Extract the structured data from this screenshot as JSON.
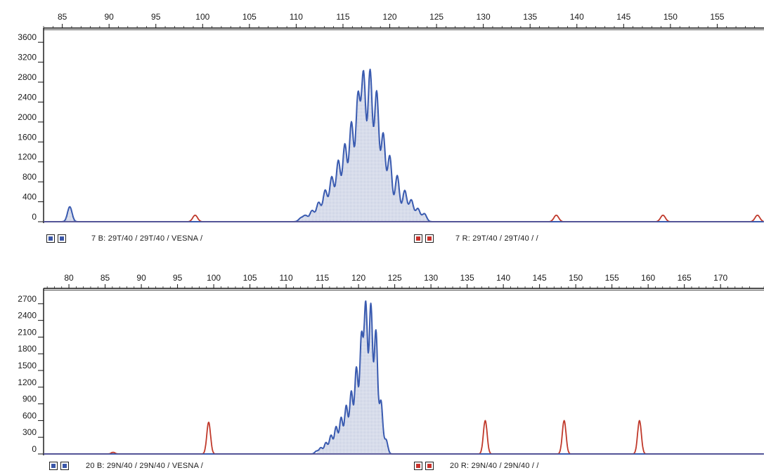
{
  "colors": {
    "blue_trace": "#3a5bb0",
    "blue_fill": "#aab5d3",
    "red_trace": "#c0392b",
    "axis": "#111111"
  },
  "panels": [
    {
      "footer_blue": "7 B: 29T/40 / 29T/40 / VESNA /",
      "footer_red": "7 R: 29T/40 / 29T/40 /  /"
    },
    {
      "footer_blue": "20 B: 29N/40 / 29N/40 / VESNA /",
      "footer_red": "20 R: 29N/40 / 29N/40 /  /"
    }
  ],
  "chart_data": [
    {
      "type": "line",
      "title": "",
      "xlabel": "",
      "ylabel": "",
      "x_ticks": [
        85,
        90,
        95,
        100,
        105,
        110,
        115,
        120,
        125,
        130,
        135,
        140,
        145,
        150,
        155
      ],
      "y_ticks": [
        0,
        400,
        800,
        1200,
        1600,
        2000,
        2400,
        2800,
        3200,
        3600
      ],
      "xlim": [
        83,
        160
      ],
      "ylim": [
        0,
        3800
      ],
      "grid": false,
      "series": [
        {
          "color": "blue",
          "filled": true,
          "peaks": [
            {
              "x": 85.8,
              "y": 300
            },
            {
              "x": 110.5,
              "y": 70
            },
            {
              "x": 111.0,
              "y": 120
            },
            {
              "x": 111.7,
              "y": 220
            },
            {
              "x": 112.4,
              "y": 380
            },
            {
              "x": 113.1,
              "y": 620
            },
            {
              "x": 113.8,
              "y": 880
            },
            {
              "x": 114.5,
              "y": 1200
            },
            {
              "x": 115.2,
              "y": 1520
            },
            {
              "x": 115.9,
              "y": 1950
            },
            {
              "x": 116.6,
              "y": 2450
            },
            {
              "x": 117.2,
              "y": 2880
            },
            {
              "x": 117.9,
              "y": 2980
            },
            {
              "x": 118.6,
              "y": 2560
            },
            {
              "x": 119.3,
              "y": 1730
            },
            {
              "x": 120.0,
              "y": 1300
            },
            {
              "x": 120.8,
              "y": 920
            },
            {
              "x": 121.6,
              "y": 620
            },
            {
              "x": 122.3,
              "y": 430
            },
            {
              "x": 123.0,
              "y": 260
            },
            {
              "x": 123.7,
              "y": 160
            }
          ]
        },
        {
          "color": "red",
          "filled": false,
          "peaks": [
            {
              "x": 99.2,
              "y": 130
            },
            {
              "x": 137.8,
              "y": 130
            },
            {
              "x": 149.2,
              "y": 130
            },
            {
              "x": 159.3,
              "y": 130
            }
          ]
        }
      ]
    },
    {
      "type": "line",
      "title": "",
      "xlabel": "",
      "ylabel": "",
      "x_ticks": [
        80,
        85,
        90,
        95,
        100,
        105,
        110,
        115,
        120,
        125,
        130,
        135,
        140,
        145,
        150,
        155,
        160,
        165,
        170
      ],
      "y_ticks": [
        0,
        300,
        600,
        900,
        1200,
        1500,
        1800,
        2100,
        2400,
        2700
      ],
      "xlim": [
        76.5,
        176
      ],
      "ylim": [
        0,
        2900
      ],
      "grid": false,
      "series": [
        {
          "color": "blue",
          "filled": true,
          "peaks": [
            {
              "x": 114.2,
              "y": 50
            },
            {
              "x": 114.8,
              "y": 110
            },
            {
              "x": 115.5,
              "y": 200
            },
            {
              "x": 116.2,
              "y": 330
            },
            {
              "x": 116.9,
              "y": 480
            },
            {
              "x": 117.6,
              "y": 640
            },
            {
              "x": 118.3,
              "y": 850
            },
            {
              "x": 119.0,
              "y": 1100
            },
            {
              "x": 119.7,
              "y": 1520
            },
            {
              "x": 120.4,
              "y": 2050
            },
            {
              "x": 121.0,
              "y": 2620
            },
            {
              "x": 121.7,
              "y": 2640
            },
            {
              "x": 122.4,
              "y": 2180
            },
            {
              "x": 123.1,
              "y": 930
            },
            {
              "x": 123.8,
              "y": 250
            }
          ]
        },
        {
          "color": "red",
          "filled": false,
          "peaks": [
            {
              "x": 86.1,
              "y": 30
            },
            {
              "x": 99.3,
              "y": 570
            },
            {
              "x": 137.5,
              "y": 600
            },
            {
              "x": 148.4,
              "y": 600
            },
            {
              "x": 158.8,
              "y": 600
            }
          ]
        }
      ]
    }
  ]
}
